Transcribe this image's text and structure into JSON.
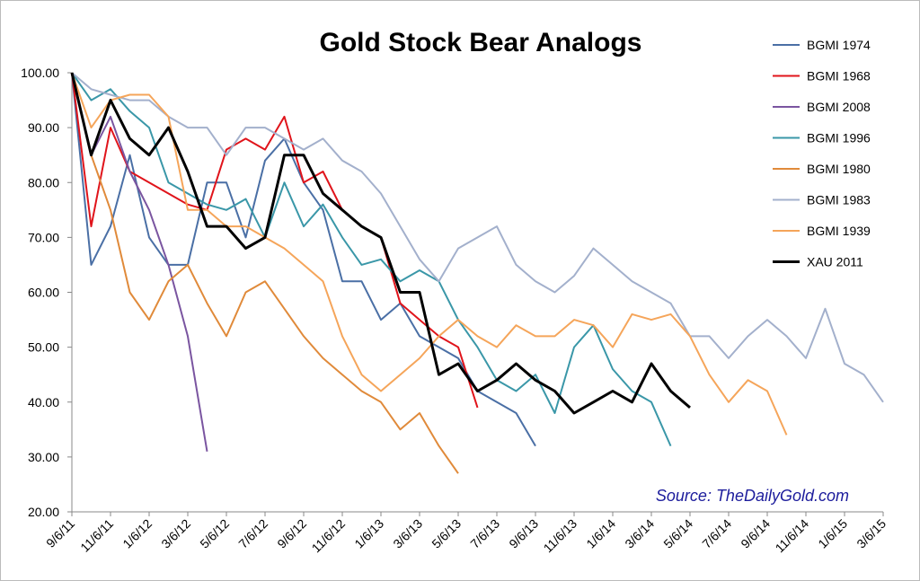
{
  "chart_data": {
    "type": "line",
    "title": "Gold Stock Bear Analogs",
    "annotation": "Source: TheDailyGold.com",
    "categories": [
      "9/6/11",
      null,
      "11/6/11",
      null,
      "1/6/12",
      null,
      "3/6/12",
      null,
      "5/6/12",
      null,
      "7/6/12",
      null,
      "9/6/12",
      null,
      "11/6/12",
      null,
      "1/6/13",
      null,
      "3/6/13",
      null,
      "5/6/13",
      null,
      "7/6/13",
      null,
      "9/6/13",
      null,
      "11/6/13",
      null,
      "1/6/14",
      null,
      "3/6/14",
      null,
      "5/6/14",
      null,
      "7/6/14",
      null,
      "9/6/14",
      null,
      "11/6/14",
      null,
      "1/6/15",
      null,
      "3/6/15"
    ],
    "ylim": [
      20,
      100
    ],
    "yticks": [
      {
        "value": 20,
        "label": "20.00"
      },
      {
        "value": 30,
        "label": "30.00"
      },
      {
        "value": 40,
        "label": "40.00"
      },
      {
        "value": 50,
        "label": "50.00"
      },
      {
        "value": 60,
        "label": "60.00"
      },
      {
        "value": 70,
        "label": "70.00"
      },
      {
        "value": 80,
        "label": "80.00"
      },
      {
        "value": 90,
        "label": "90.00"
      },
      {
        "value": 100,
        "label": "100.00"
      }
    ],
    "grid": false,
    "legend": "right",
    "series": [
      {
        "name": "BGMI 1974",
        "color": "#4a6fa5",
        "values": [
          100,
          65,
          72,
          85,
          70,
          65,
          65,
          80,
          80,
          70,
          84,
          88,
          80,
          75,
          62,
          62,
          55,
          58,
          52,
          50,
          48,
          42,
          40,
          38,
          32,
          null,
          null,
          null,
          null,
          null,
          null,
          null,
          null,
          null,
          null,
          null,
          null,
          null,
          null,
          null,
          null,
          null,
          null
        ]
      },
      {
        "name": "BGMI 1968",
        "color": "#e0141b",
        "values": [
          100,
          72,
          90,
          82,
          80,
          78,
          76,
          75,
          86,
          88,
          86,
          92,
          80,
          82,
          75,
          72,
          70,
          58,
          55,
          52,
          50,
          39,
          null,
          null,
          null,
          null,
          null,
          null,
          null,
          null,
          null,
          null,
          null,
          null,
          null,
          null,
          null,
          null,
          null,
          null,
          null,
          null,
          null
        ]
      },
      {
        "name": "BGMI 2008",
        "color": "#7a55a0",
        "values": [
          100,
          85,
          92,
          82,
          75,
          65,
          52,
          31,
          null,
          null,
          null,
          null,
          null,
          null,
          null,
          null,
          null,
          null,
          null,
          null,
          null,
          null,
          null,
          null,
          null,
          null,
          null,
          null,
          null,
          null,
          null,
          null,
          null,
          null,
          null,
          null,
          null,
          null,
          null,
          null,
          null,
          null,
          null
        ]
      },
      {
        "name": "BGMI 1996",
        "color": "#3a97a8",
        "values": [
          100,
          95,
          97,
          93,
          90,
          80,
          78,
          76,
          75,
          77,
          70,
          80,
          72,
          76,
          70,
          65,
          66,
          62,
          64,
          62,
          55,
          50,
          44,
          42,
          45,
          38,
          50,
          54,
          46,
          42,
          40,
          32,
          null,
          null,
          null,
          null,
          null,
          null,
          null,
          null,
          null,
          null,
          null
        ]
      },
      {
        "name": "BGMI 1980",
        "color": "#e08a3a",
        "values": [
          100,
          85,
          75,
          60,
          55,
          62,
          65,
          58,
          52,
          60,
          62,
          57,
          52,
          48,
          45,
          42,
          40,
          35,
          38,
          32,
          27,
          null,
          null,
          null,
          null,
          null,
          null,
          null,
          null,
          null,
          null,
          null,
          null,
          null,
          null,
          null,
          null,
          null,
          null,
          null,
          null,
          null,
          null
        ]
      },
      {
        "name": "BGMI 1983",
        "color": "#a3b0cc",
        "values": [
          100,
          97,
          96,
          95,
          95,
          92,
          90,
          90,
          85,
          90,
          90,
          88,
          86,
          88,
          84,
          82,
          78,
          72,
          66,
          62,
          68,
          70,
          72,
          65,
          62,
          60,
          63,
          68,
          65,
          62,
          60,
          58,
          52,
          52,
          48,
          52,
          55,
          52,
          48,
          57,
          47,
          45,
          40
        ]
      },
      {
        "name": "BGMI 1939",
        "color": "#f5a55a",
        "values": [
          100,
          90,
          95,
          96,
          96,
          92,
          75,
          75,
          72,
          72,
          70,
          68,
          65,
          62,
          52,
          45,
          42,
          45,
          48,
          52,
          55,
          52,
          50,
          54,
          52,
          52,
          55,
          54,
          50,
          56,
          55,
          56,
          52,
          45,
          40,
          44,
          42,
          34,
          null,
          null,
          null,
          null,
          null
        ]
      },
      {
        "name": "XAU 2011",
        "color": "#000000",
        "values": [
          100,
          85,
          95,
          88,
          85,
          90,
          82,
          72,
          72,
          68,
          70,
          85,
          85,
          78,
          75,
          72,
          70,
          60,
          60,
          45,
          47,
          42,
          44,
          47,
          44,
          42,
          38,
          40,
          42,
          40,
          47,
          42,
          39,
          null,
          null,
          null,
          null,
          null,
          null,
          null,
          null,
          null,
          null
        ]
      }
    ]
  }
}
